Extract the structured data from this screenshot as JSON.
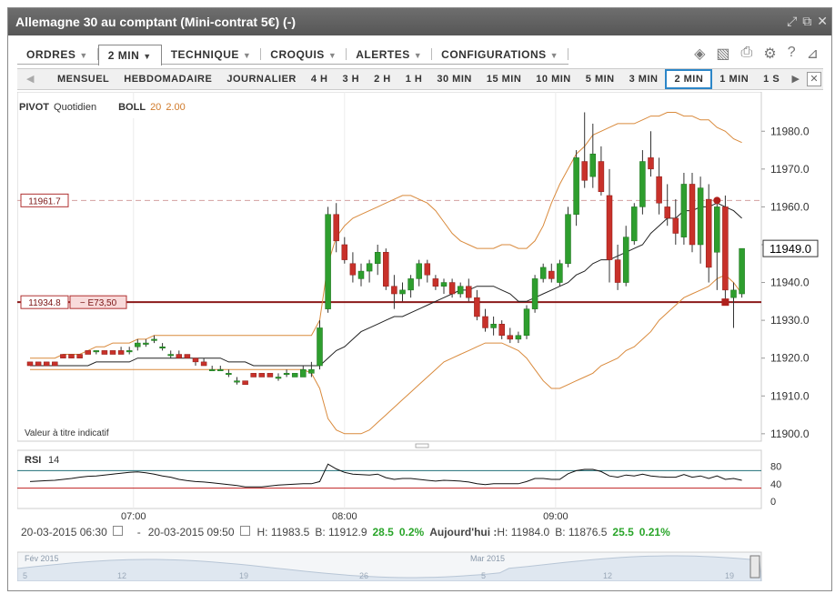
{
  "window": {
    "title": "Allemagne 30 au comptant (Mini-contrat 5€) (-)"
  },
  "toolbar": {
    "menus": [
      {
        "label": "ORDRES"
      },
      {
        "label": "2 MIN"
      },
      {
        "label": "TECHNIQUE"
      },
      {
        "label": "CROQUIS"
      },
      {
        "label": "ALERTES"
      },
      {
        "label": "CONFIGURATIONS"
      }
    ]
  },
  "timeframes": [
    "MENSUEL",
    "HEBDOMADAIRE",
    "JOURNALIER",
    "4 H",
    "3 H",
    "2 H",
    "1 H",
    "30 MIN",
    "15 MIN",
    "10 MIN",
    "5 MIN",
    "3 MIN",
    "2 MIN",
    "1 MIN",
    "1 S"
  ],
  "selected_timeframe": "2 MIN",
  "legend": {
    "pivot": "PIVOT",
    "pivot_period": "Quotidien",
    "boll": "BOLL",
    "boll_period": "20",
    "boll_dev": "2.00"
  },
  "chart": {
    "note": "Valeur à titre indicatif",
    "current_price": "11949.0",
    "line1_label": "11961.7",
    "line2_label": "11934.8",
    "line2_pl": "− E73,50",
    "rsi_label": "RSI",
    "rsi_period": "14"
  },
  "chart_data": {
    "type": "candlestick",
    "y_ticks": [
      11900,
      11910,
      11920,
      11930,
      11940,
      11950,
      11960,
      11970,
      11980
    ],
    "ylim": [
      11899,
      11988
    ],
    "x_ticks": [
      "07:00",
      "08:00",
      "09:00"
    ],
    "ohlc": [
      [
        11919,
        11919,
        11918,
        11918
      ],
      [
        11919,
        11919,
        11918,
        11918
      ],
      [
        11919,
        11919,
        11918,
        11918
      ],
      [
        11919,
        11919,
        11918,
        11918
      ],
      [
        11921,
        11921,
        11920,
        11920
      ],
      [
        11921,
        11921,
        11920,
        11920
      ],
      [
        11921,
        11921,
        11920,
        11920
      ],
      [
        11922,
        11922,
        11921,
        11921
      ],
      [
        11922,
        11922,
        11921,
        11922
      ],
      [
        11922,
        11922,
        11921,
        11921
      ],
      [
        11922,
        11922,
        11921,
        11921
      ],
      [
        11922,
        11923,
        11921,
        11921
      ],
      [
        11922,
        11923,
        11921,
        11922
      ],
      [
        11923,
        11925,
        11922,
        11924
      ],
      [
        11924,
        11925,
        11923,
        11924
      ],
      [
        11925,
        11926,
        11924,
        11925
      ],
      [
        11923,
        11924,
        11922,
        11923
      ],
      [
        11921,
        11922,
        11920,
        11921
      ],
      [
        11921,
        11922,
        11920,
        11920
      ],
      [
        11921,
        11921,
        11920,
        11920
      ],
      [
        11920,
        11920,
        11918,
        11919
      ],
      [
        11919,
        11920,
        11918,
        11918
      ],
      [
        11917,
        11918,
        11917,
        11917
      ],
      [
        11917,
        11918,
        11917,
        11917
      ],
      [
        11916,
        11917,
        11915,
        11916
      ],
      [
        11914,
        11915,
        11913,
        11914
      ],
      [
        11914,
        11914,
        11913,
        11913
      ],
      [
        11916,
        11916,
        11915,
        11915
      ],
      [
        11916,
        11916,
        11915,
        11915
      ],
      [
        11916,
        11916,
        11915,
        11915
      ],
      [
        11915,
        11916,
        11914,
        11915
      ],
      [
        11916,
        11917,
        11915,
        11916
      ],
      [
        11915,
        11916,
        11915,
        11916
      ],
      [
        11915,
        11918,
        11915,
        11917
      ],
      [
        11916,
        11919,
        11915,
        11917
      ],
      [
        11918,
        11930,
        11917,
        11928
      ],
      [
        11933,
        11960,
        11932,
        11958
      ],
      [
        11958,
        11961,
        11948,
        11951
      ],
      [
        11950,
        11952,
        11945,
        11946
      ],
      [
        11945,
        11948,
        11940,
        11942
      ],
      [
        11941,
        11945,
        11939,
        11943
      ],
      [
        11943,
        11946,
        11940,
        11945
      ],
      [
        11945,
        11950,
        11942,
        11948
      ],
      [
        11948,
        11949,
        11938,
        11939
      ],
      [
        11939,
        11942,
        11933,
        11937
      ],
      [
        11937,
        11940,
        11935,
        11938
      ],
      [
        11938,
        11942,
        11936,
        11941
      ],
      [
        11941,
        11946,
        11939,
        11945
      ],
      [
        11945,
        11946,
        11940,
        11942
      ],
      [
        11941,
        11942,
        11938,
        11939
      ],
      [
        11939,
        11941,
        11937,
        11940
      ],
      [
        11940,
        11941,
        11936,
        11937
      ],
      [
        11937,
        11940,
        11936,
        11939
      ],
      [
        11939,
        11941,
        11935,
        11936
      ],
      [
        11936,
        11938,
        11930,
        11931
      ],
      [
        11931,
        11933,
        11927,
        11928
      ],
      [
        11928,
        11931,
        11926,
        11929
      ],
      [
        11929,
        11930,
        11925,
        11926
      ],
      [
        11926,
        11928,
        11924,
        11925
      ],
      [
        11925,
        11927,
        11924,
        11926
      ],
      [
        11926,
        11934,
        11925,
        11933
      ],
      [
        11933,
        11942,
        11932,
        11941
      ],
      [
        11941,
        11945,
        11940,
        11944
      ],
      [
        11943,
        11945,
        11940,
        11941
      ],
      [
        11940,
        11946,
        11939,
        11945
      ],
      [
        11945,
        11960,
        11944,
        11958
      ],
      [
        11958,
        11975,
        11955,
        11973
      ],
      [
        11972,
        11985,
        11965,
        11967
      ],
      [
        11968,
        11982,
        11965,
        11974
      ],
      [
        11972,
        11976,
        11963,
        11964
      ],
      [
        11963,
        11970,
        11940,
        11946
      ],
      [
        11946,
        11950,
        11938,
        11940
      ],
      [
        11940,
        11955,
        11939,
        11952
      ],
      [
        11951,
        11961,
        11950,
        11960
      ],
      [
        11960,
        11975,
        11958,
        11972
      ],
      [
        11973,
        11980,
        11968,
        11970
      ],
      [
        11968,
        11973,
        11958,
        11961
      ],
      [
        11960,
        11966,
        11955,
        11957
      ],
      [
        11957,
        11962,
        11950,
        11953
      ],
      [
        11952,
        11969,
        11950,
        11966
      ],
      [
        11966,
        11969,
        11948,
        11950
      ],
      [
        11950,
        11968,
        11945,
        11965
      ],
      [
        11962,
        11966,
        11940,
        11944
      ],
      [
        11948,
        11962,
        11938,
        11960
      ],
      [
        11960,
        11963,
        11935,
        11938
      ],
      [
        11936,
        11940,
        11928,
        11938
      ],
      [
        11937,
        11949,
        11936,
        11949
      ]
    ],
    "series": [
      {
        "values": [
          11918,
          11918,
          11918,
          11918,
          11918,
          11918,
          11918,
          11918,
          11919,
          11919,
          11919,
          11919,
          11919,
          11920,
          11920,
          11920,
          11920,
          11920,
          11920,
          11920,
          11920,
          11920,
          11920,
          11920,
          11919,
          11919,
          11919,
          11918,
          11918,
          11918,
          11918,
          11918,
          11918,
          11918,
          11918,
          11918,
          11920,
          11922,
          11923,
          11925,
          11927,
          11928,
          11929,
          11930,
          11931,
          11931,
          11932,
          11933,
          11934,
          11935,
          11936,
          11937,
          11938,
          11938,
          11939,
          11939,
          11939,
          11938,
          11937,
          11935,
          11935,
          11936,
          11937,
          11938,
          11939,
          11940,
          11942,
          11943,
          11945,
          11946,
          11946,
          11947,
          11948,
          11949,
          11950,
          11953,
          11955,
          11957,
          11957,
          11959,
          11959,
          11960,
          11960,
          11961,
          11960,
          11959,
          11957
        ]
      },
      {
        "values": [
          11920,
          11920,
          11920,
          11920,
          11921,
          11921,
          11921,
          11922,
          11923,
          11923,
          11924,
          11924,
          11924,
          11925,
          11925,
          11926,
          11926,
          11926,
          11926,
          11926,
          11926,
          11926,
          11926,
          11926,
          11926,
          11926,
          11926,
          11926,
          11926,
          11926,
          11926,
          11926,
          11926,
          11926,
          11926,
          11930,
          11945,
          11952,
          11955,
          11957,
          11958,
          11959,
          11960,
          11961,
          11962,
          11963,
          11963,
          11962,
          11961,
          11959,
          11956,
          11953,
          11951,
          11950,
          11949,
          11949,
          11949,
          11950,
          11950,
          11949,
          11949,
          11951,
          11955,
          11961,
          11966,
          11970,
          11974,
          11976,
          11979,
          11980,
          11981,
          11982,
          11982,
          11982,
          11983,
          11984,
          11984,
          11985,
          11985,
          11984,
          11984,
          11983,
          11983,
          11981,
          11980,
          11978,
          11977
        ]
      },
      {
        "values": [
          11917,
          11917,
          11917,
          11917,
          11917,
          11917,
          11917,
          11917,
          11917,
          11917,
          11917,
          11917,
          11917,
          11917,
          11917,
          11917,
          11917,
          11917,
          11917,
          11917,
          11917,
          11917,
          11917,
          11917,
          11917,
          11917,
          11917,
          11917,
          11917,
          11917,
          11917,
          11917,
          11917,
          11917,
          11916,
          11912,
          11904,
          11901,
          11900,
          11900,
          11900,
          11901,
          11903,
          11905,
          11907,
          11909,
          11911,
          11913,
          11915,
          11917,
          11919,
          11920,
          11921,
          11922,
          11923,
          11924,
          11924,
          11924,
          11923,
          11922,
          11920,
          11917,
          11914,
          11912,
          11912,
          11913,
          11914,
          11915,
          11916,
          11918,
          11919,
          11920,
          11922,
          11923,
          11925,
          11927,
          11930,
          11932,
          11934,
          11936,
          11937,
          11938,
          11939,
          11941,
          11942,
          11940,
          11937
        ]
      }
    ],
    "rsi": {
      "y_ticks": [
        80,
        40,
        0
      ],
      "levels": [
        70,
        30
      ],
      "values": [
        45,
        46,
        47,
        48,
        50,
        52,
        55,
        57,
        58,
        60,
        62,
        64,
        66,
        67,
        65,
        62,
        58,
        55,
        50,
        47,
        45,
        44,
        42,
        40,
        38,
        36,
        33,
        33,
        33,
        35,
        37,
        38,
        39,
        40,
        40,
        45,
        85,
        74,
        66,
        62,
        61,
        60,
        62,
        54,
        50,
        52,
        52,
        50,
        48,
        46,
        48,
        47,
        46,
        44,
        40,
        38,
        40,
        40,
        40,
        40,
        45,
        52,
        52,
        50,
        50,
        63,
        70,
        73,
        73,
        68,
        58,
        55,
        60,
        58,
        62,
        58,
        56,
        55,
        55,
        61,
        55,
        58,
        52,
        58,
        50,
        52,
        48
      ]
    }
  }
}
